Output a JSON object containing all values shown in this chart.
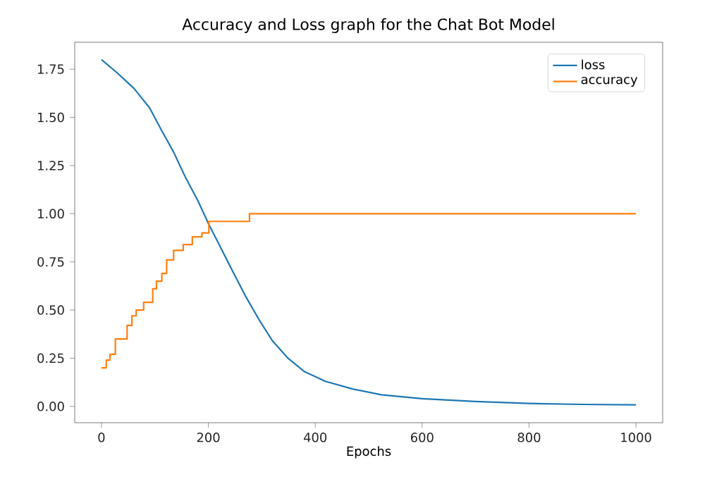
{
  "chart_data": {
    "type": "line",
    "title": "Accuracy and Loss graph for the Chat Bot Model",
    "xlabel": "Epochs",
    "xlim": [
      -50,
      1050
    ],
    "ylim": [
      -0.085,
      1.89
    ],
    "xticks": [
      0,
      200,
      400,
      600,
      800,
      1000
    ],
    "yticks": [
      {
        "value": 0,
        "label": "0.00"
      },
      {
        "value": 0.25,
        "label": "0.25"
      },
      {
        "value": 0.5,
        "label": "0.50"
      },
      {
        "value": 0.75,
        "label": "0.75"
      },
      {
        "value": 1,
        "label": "1.00"
      },
      {
        "value": 1.25,
        "label": "1.25"
      },
      {
        "value": 1.5,
        "label": "1.50"
      },
      {
        "value": 1.75,
        "label": "1.75"
      }
    ],
    "legend": "top right",
    "grid": false,
    "marker": "none",
    "line_style": "solid",
    "series": [
      {
        "name": "loss",
        "color": "#1f77b4",
        "x": [
          0,
          30,
          61,
          90,
          113,
          135,
          157,
          180,
          200,
          222,
          244,
          270,
          297,
          320,
          349,
          380,
          419,
          470,
          524,
          600,
          700,
          800,
          900,
          1000
        ],
        "values": [
          1.8,
          1.73,
          1.65,
          1.55,
          1.43,
          1.32,
          1.19,
          1.07,
          0.95,
          0.83,
          0.71,
          0.57,
          0.44,
          0.34,
          0.25,
          0.18,
          0.13,
          0.09,
          0.06,
          0.04,
          0.025,
          0.015,
          0.01,
          0.008
        ]
      },
      {
        "name": "accuracy",
        "color": "#ff7f0e",
        "type": "step",
        "x": [
          0,
          9,
          16,
          26,
          48,
          57,
          65,
          79,
          96,
          103,
          113,
          122,
          135,
          153,
          170,
          188,
          201,
          277,
          1000
        ],
        "values": [
          0.2,
          0.24,
          0.27,
          0.35,
          0.42,
          0.47,
          0.5,
          0.54,
          0.61,
          0.65,
          0.69,
          0.76,
          0.81,
          0.84,
          0.88,
          0.9,
          0.96,
          1.0,
          1.0
        ]
      }
    ]
  }
}
